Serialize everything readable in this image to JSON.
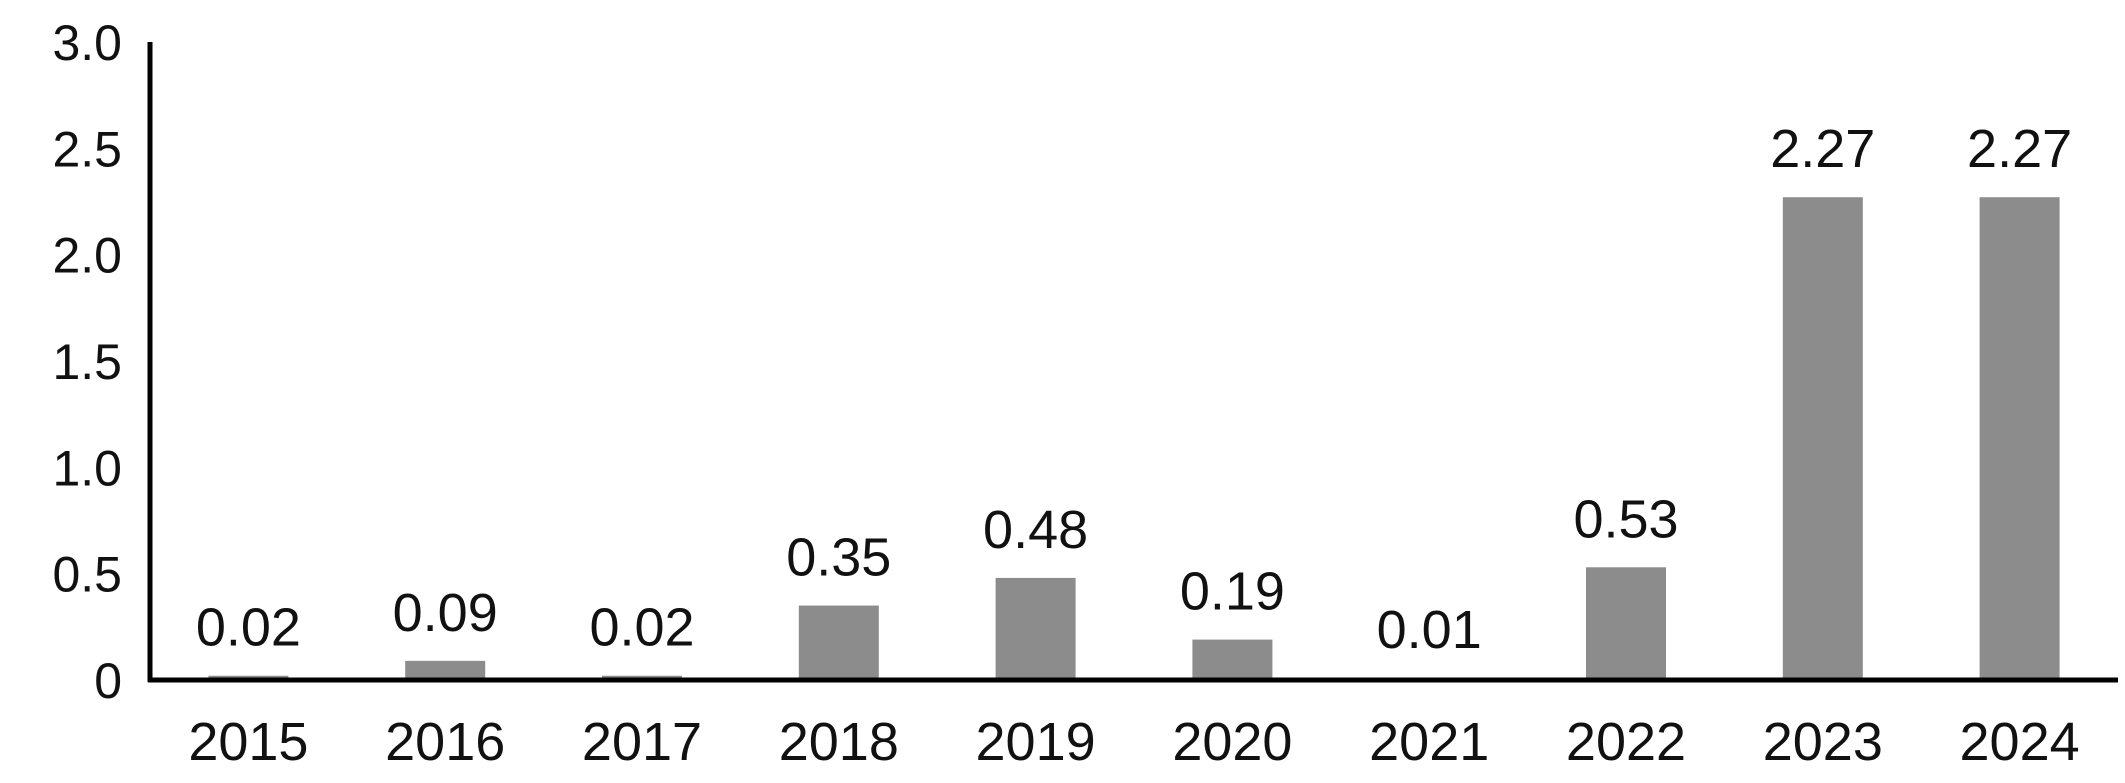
{
  "chart_data": {
    "type": "bar",
    "title": "",
    "xlabel": "",
    "ylabel": "",
    "categories": [
      "2015",
      "2016",
      "2017",
      "2018",
      "2019",
      "2020",
      "2021",
      "2022",
      "2023",
      "2024"
    ],
    "values": [
      0.02,
      0.09,
      0.02,
      0.35,
      0.48,
      0.19,
      0.01,
      0.53,
      2.27,
      2.27
    ],
    "data_labels": [
      "0.02",
      "0.09",
      "0.02",
      "0.35",
      "0.48",
      "0.19",
      "0.01",
      "0.53",
      "2.27",
      "2.27"
    ],
    "ylim": [
      0,
      3.0
    ],
    "yticks": [
      0,
      0.5,
      1.0,
      1.5,
      2.0,
      2.5,
      3.0
    ],
    "ytick_labels": [
      "0",
      "0.5",
      "1.0",
      "1.5",
      "2.0",
      "2.5",
      "3.0"
    ],
    "grid": false,
    "legend": "none",
    "colors": {
      "bar": "#8c8c8c",
      "axis": "#000000",
      "text": "#111111"
    }
  }
}
